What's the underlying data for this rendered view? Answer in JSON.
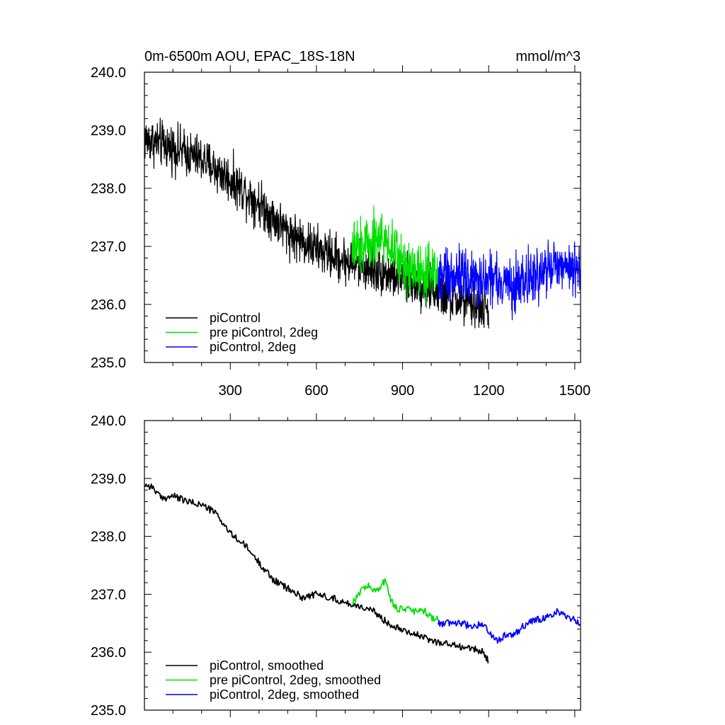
{
  "figure": {
    "title": "0m-6500m AOU, EPAC_18S-18N",
    "units": "mmol/m^3"
  },
  "chart_data": [
    {
      "type": "line",
      "panel": "top",
      "xlim": [
        1,
        1520
      ],
      "ylim": [
        235.0,
        240.0
      ],
      "xticks": [
        300,
        600,
        900,
        1200,
        1500
      ],
      "xtick_labels": [
        "300",
        "600",
        "900",
        "1200",
        "1500"
      ],
      "yticks": [
        235.0,
        236.0,
        237.0,
        238.0,
        239.0,
        240.0
      ],
      "ytick_labels": [
        "235.0",
        "236.0",
        "237.0",
        "238.0",
        "239.0",
        "240.0"
      ],
      "legend_position": "bottom-left",
      "series": [
        {
          "name": "piControl",
          "color": "#000000",
          "x_range": [
            1,
            1200
          ],
          "trend_x": [
            1,
            100,
            200,
            300,
            400,
            500,
            600,
            700,
            800,
            900,
            1000,
            1100,
            1200
          ],
          "trend_y": [
            238.85,
            238.7,
            238.5,
            238.15,
            237.75,
            237.25,
            236.95,
            236.75,
            236.6,
            236.45,
            236.25,
            236.05,
            235.9
          ],
          "noise_amplitude": 0.28
        },
        {
          "name": "pre piControl, 2deg",
          "color": "#00e000",
          "x_range": [
            724,
            1024
          ],
          "trend_x": [
            724,
            760,
            800,
            840,
            880,
            920,
            960,
            1000,
            1024
          ],
          "trend_y": [
            236.9,
            237.0,
            237.15,
            237.1,
            236.85,
            236.65,
            236.6,
            236.55,
            236.55
          ],
          "noise_amplitude": 0.33
        },
        {
          "name": "piControl, 2deg",
          "color": "#0000ff",
          "x_range": [
            1024,
            1520
          ],
          "trend_x": [
            1024,
            1100,
            1200,
            1250,
            1300,
            1400,
            1450,
            1520
          ],
          "trend_y": [
            236.5,
            236.5,
            236.45,
            236.3,
            236.35,
            236.6,
            236.65,
            236.55
          ],
          "noise_amplitude": 0.33
        }
      ]
    },
    {
      "type": "line",
      "panel": "bottom",
      "xlim": [
        1,
        1520
      ],
      "ylim": [
        235.0,
        240.0
      ],
      "xticks": [
        300,
        600,
        900,
        1200,
        1500
      ],
      "yticks": [
        235.0,
        236.0,
        237.0,
        238.0,
        239.0,
        240.0
      ],
      "ytick_labels": [
        "235.0",
        "236.0",
        "237.0",
        "238.0",
        "239.0",
        "240.0"
      ],
      "legend_position": "bottom-left",
      "series": [
        {
          "name": "piControl, smoothed",
          "color": "#000000",
          "x": [
            1,
            30,
            60,
            100,
            150,
            200,
            250,
            300,
            350,
            400,
            450,
            500,
            550,
            600,
            650,
            700,
            750,
            800,
            850,
            900,
            950,
            1000,
            1050,
            1100,
            1150,
            1180,
            1200
          ],
          "y": [
            238.9,
            238.85,
            238.65,
            238.7,
            238.6,
            238.55,
            238.4,
            238.05,
            237.85,
            237.55,
            237.25,
            237.1,
            236.95,
            237.0,
            236.95,
            236.85,
            236.8,
            236.7,
            236.5,
            236.4,
            236.3,
            236.2,
            236.15,
            236.1,
            236.05,
            236.0,
            235.85
          ]
        },
        {
          "name": "pre piControl, 2deg, smoothed",
          "color": "#00e000",
          "x": [
            724,
            740,
            760,
            780,
            800,
            820,
            840,
            860,
            880,
            900,
            920,
            940,
            960,
            980,
            1000,
            1024
          ],
          "y": [
            236.85,
            236.95,
            237.1,
            237.15,
            237.05,
            237.1,
            237.25,
            236.9,
            236.75,
            236.75,
            236.75,
            236.7,
            236.7,
            236.7,
            236.6,
            236.55
          ]
        },
        {
          "name": "piControl, 2deg, smoothed",
          "color": "#0000ff",
          "x": [
            1024,
            1060,
            1100,
            1140,
            1180,
            1200,
            1230,
            1260,
            1290,
            1320,
            1360,
            1400,
            1440,
            1480,
            1520
          ],
          "y": [
            236.5,
            236.5,
            236.5,
            236.45,
            236.5,
            236.35,
            236.2,
            236.3,
            236.3,
            236.45,
            236.55,
            236.6,
            236.7,
            236.6,
            236.5
          ]
        }
      ]
    }
  ]
}
